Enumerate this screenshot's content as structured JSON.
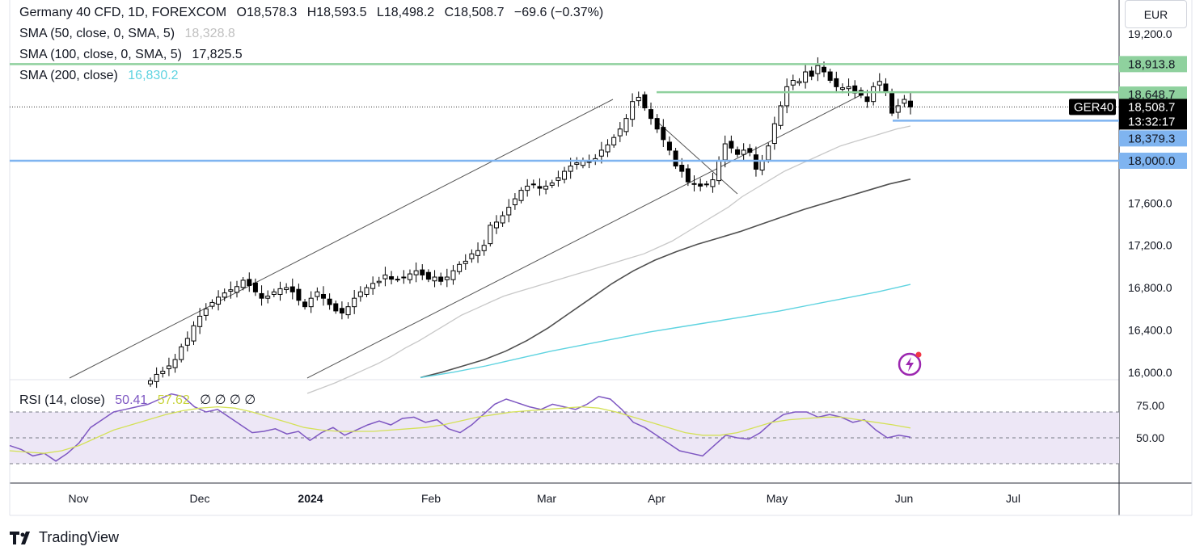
{
  "header": {
    "symbol": "Germany 40 CFD, 1D, FOREXCOM",
    "ohlc": {
      "o": "O18,578.3",
      "h": "H18,593.5",
      "l": "L18,498.2",
      "c": "C18,508.7",
      "chg": "−69.6 (−0.37%)"
    },
    "sma50": {
      "label": "SMA (50, close, 0, SMA, 5)",
      "value": "18,328.8"
    },
    "sma100": {
      "label": "SMA (100, close, 0, SMA, 5)",
      "value": "17,825.5"
    },
    "sma200": {
      "label": "SMA (200, close)",
      "value": "16,830.2"
    }
  },
  "rsi_legend": {
    "label": "RSI (14, close)",
    "value": "50.41",
    "ma": "57.62",
    "extra": "∅ ∅ ∅ ∅"
  },
  "currency": "EUR",
  "brand": "TradingView",
  "colors": {
    "up": "#ffffff",
    "down": "#000000",
    "sma50": "#c8c8c8",
    "sma100": "#505050",
    "sma200": "#5ed3e0",
    "green_line": "#8fd19e",
    "blue_line": "#7fb4f0",
    "rsi": "#7e57c2",
    "rsi_ma": "#d4e157",
    "rsi_band": "#ede7f6"
  },
  "chart_data": {
    "type": "candlestick",
    "price_axis": {
      "ticks": [
        "19,200.0",
        "17,600.0",
        "17,200.0",
        "16,800.0",
        "16,400.0",
        "16,000.0"
      ],
      "range": [
        15930,
        19520
      ]
    },
    "time_axis": {
      "labels": [
        "Nov",
        "Dec",
        "2024",
        "Feb",
        "Mar",
        "Apr",
        "May",
        "Jun",
        "Jul"
      ]
    },
    "price_labels": [
      {
        "text": "18,913.8",
        "price": 18913.8,
        "kind": "green"
      },
      {
        "text": "18,648.7",
        "price": 18648.7,
        "kind": "green"
      },
      {
        "text": "18,508.7",
        "price": 18508.7,
        "kind": "current"
      },
      {
        "text": "13:32:17",
        "price": 18508.7,
        "kind": "countdown"
      },
      {
        "text": "18,379.3",
        "price": 18379.3,
        "kind": "blue"
      },
      {
        "text": "18,000.0",
        "price": 18000.0,
        "kind": "blue"
      }
    ],
    "symbol_tag": "GER40",
    "horizontal_lines": [
      {
        "price": 18913.8,
        "color": "green",
        "from": "full"
      },
      {
        "price": 18648.7,
        "color": "green",
        "from": "Apr"
      },
      {
        "price": 18379.3,
        "color": "blue",
        "from": "Jun"
      },
      {
        "price": 18000.0,
        "color": "blue",
        "from": "full"
      }
    ],
    "closes": [
      15920,
      15980,
      16010,
      16060,
      16120,
      16240,
      16320,
      16440,
      16530,
      16600,
      16660,
      16710,
      16750,
      16780,
      16810,
      16870,
      16820,
      16760,
      16700,
      16720,
      16760,
      16790,
      16800,
      16760,
      16680,
      16620,
      16700,
      16760,
      16700,
      16640,
      16580,
      16560,
      16620,
      16700,
      16760,
      16800,
      16840,
      16860,
      16920,
      16880,
      16880,
      16900,
      16930,
      16960,
      16920,
      16880,
      16900,
      16860,
      16900,
      16960,
      17020,
      17050,
      17120,
      17150,
      17200,
      17390,
      17420,
      17480,
      17560,
      17640,
      17720,
      17760,
      17780,
      17740,
      17760,
      17790,
      17840,
      17900,
      17950,
      17980,
      18000,
      17990,
      18020,
      18100,
      18150,
      18220,
      18300,
      18400,
      18560,
      18600,
      18500,
      18400,
      18300,
      18200,
      18100,
      17950,
      17900,
      17800,
      17780,
      17760,
      17780,
      17820,
      18000,
      18160,
      18120,
      18060,
      18100,
      18080,
      17920,
      18000,
      18140,
      18350,
      18520,
      18700,
      18760,
      18750,
      18840,
      18800,
      18900,
      18840,
      18760,
      18700,
      18690,
      18700,
      18640,
      18620,
      18560,
      18700,
      18750,
      18660,
      18450,
      18520,
      18580,
      18508.7
    ],
    "sma50": [
      15800,
      15850,
      15900,
      15960,
      16020,
      16080,
      16150,
      16230,
      16300,
      16380,
      16460,
      16540,
      16600,
      16660,
      16720,
      16760,
      16800,
      16840,
      16880,
      16920,
      16960,
      17000,
      17040,
      17080,
      17120,
      17180,
      17240,
      17320,
      17400,
      17480,
      17560,
      17660,
      17740,
      17820,
      17900,
      17960,
      18020,
      18080,
      18140,
      18180,
      18220,
      18260,
      18300,
      18328.8
    ],
    "sma100": [
      15950,
      16000,
      16060,
      16120,
      16200,
      16300,
      16420,
      16560,
      16700,
      16840,
      16960,
      17060,
      17140,
      17210,
      17270,
      17330,
      17400,
      17470,
      17540,
      17600,
      17660,
      17720,
      17780,
      17825.5
    ],
    "sma200": [
      15950,
      16000,
      16060,
      16130,
      16200,
      16260,
      16320,
      16380,
      16430,
      16480,
      16530,
      16580,
      16640,
      16700,
      16760,
      16830.2
    ],
    "rsi_axis": {
      "ticks": [
        "75.00",
        "50.00"
      ]
    },
    "rsi": [
      44,
      41,
      36,
      38,
      32,
      38,
      46,
      58,
      64,
      70,
      72,
      74,
      76,
      80,
      84,
      82,
      74,
      70,
      72,
      66,
      60,
      54,
      55,
      57,
      53,
      55,
      48,
      54,
      58,
      52,
      56,
      60,
      63,
      60,
      65,
      66,
      62,
      64,
      57,
      54,
      60,
      68,
      76,
      80,
      77,
      74,
      72,
      76,
      74,
      72,
      76,
      82,
      80,
      72,
      62,
      58,
      52,
      46,
      40,
      38,
      36,
      44,
      52,
      50,
      49,
      54,
      62,
      68,
      70,
      70,
      66,
      68,
      66,
      62,
      64,
      56,
      50,
      52,
      50.41
    ],
    "rsi_ma": [
      40,
      39,
      38,
      40,
      44,
      50,
      56,
      60,
      64,
      68,
      71,
      73,
      74,
      73,
      70,
      66,
      62,
      58,
      56,
      55,
      55,
      55,
      56,
      57,
      58,
      60,
      63,
      66,
      68,
      70,
      71,
      72,
      73,
      74,
      73,
      70,
      66,
      62,
      58,
      54,
      52,
      52,
      54,
      58,
      62,
      64,
      65,
      66,
      66,
      64,
      62,
      60,
      57.62
    ]
  }
}
